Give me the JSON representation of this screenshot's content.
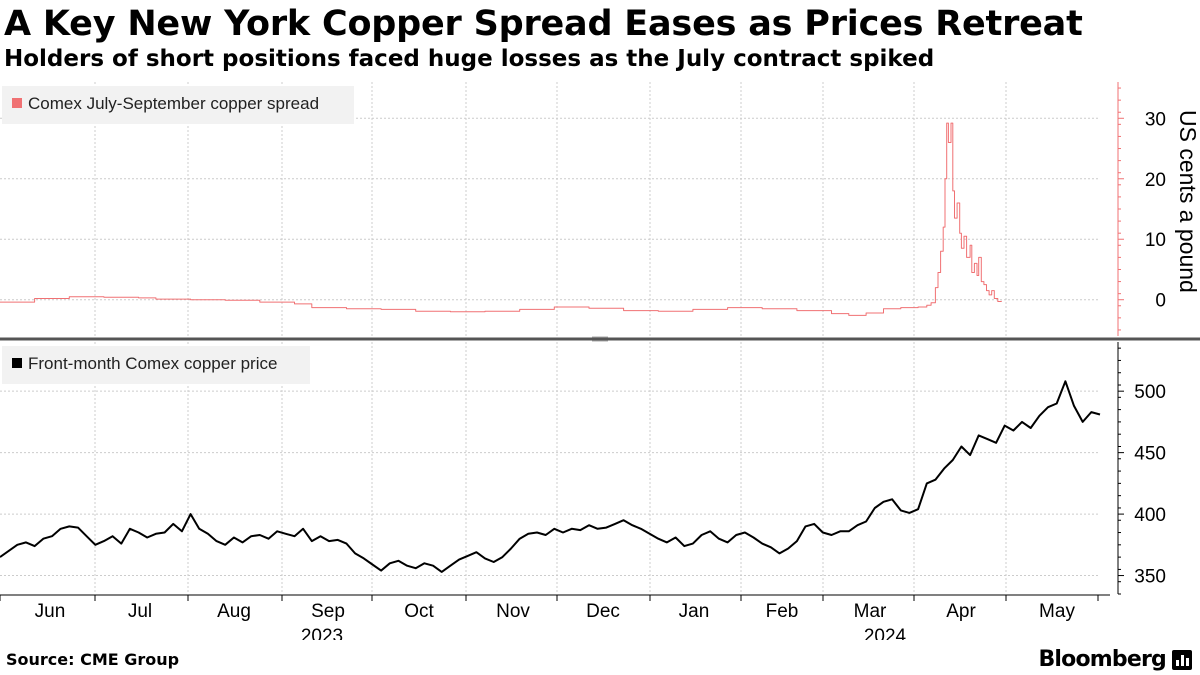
{
  "header": {
    "title": "A Key New York Copper Spread Eases as Prices Retreat",
    "subtitle": "Holders of short positions faced huge losses as the July contract spiked"
  },
  "footer": {
    "source": "Source: CME Group",
    "brand": "Bloomberg"
  },
  "colors": {
    "spread": "#f07173",
    "price": "#000000",
    "grid": "#cccccc",
    "legend_bg": "#f2f2f2",
    "separator": "#555555"
  },
  "chart_data": [
    {
      "type": "line",
      "title": "Comex July-September copper spread",
      "legend": "Comex July-September copper spread",
      "legend_placement": "top-left",
      "ylabel": "US cents a pound",
      "ylim": [
        -6,
        36
      ],
      "yticks": [
        0,
        10,
        20,
        30
      ],
      "step": true,
      "series_color": "#f07173",
      "series": [
        {
          "name": "Comex July-September copper spread",
          "points": [
            [
              0,
              -0.4
            ],
            [
              4,
              0.2
            ],
            [
              8,
              0.5
            ],
            [
              12,
              0.4
            ],
            [
              16,
              0.3
            ],
            [
              18,
              0.1
            ],
            [
              22,
              0.0
            ],
            [
              26,
              -0.1
            ],
            [
              30,
              -0.4
            ],
            [
              34,
              -0.7
            ],
            [
              36,
              -1.3
            ],
            [
              40,
              -1.5
            ],
            [
              44,
              -1.6
            ],
            [
              48,
              -1.9
            ],
            [
              52,
              -2.0
            ],
            [
              56,
              -1.9
            ],
            [
              60,
              -1.6
            ],
            [
              64,
              -1.2
            ],
            [
              68,
              -1.4
            ],
            [
              72,
              -1.8
            ],
            [
              76,
              -1.9
            ],
            [
              80,
              -1.6
            ],
            [
              84,
              -1.3
            ],
            [
              88,
              -1.5
            ],
            [
              92,
              -1.8
            ],
            [
              96,
              -2.3
            ],
            [
              98,
              -2.6
            ],
            [
              100,
              -2.2
            ],
            [
              102,
              -1.5
            ],
            [
              104,
              -1.3
            ],
            [
              106,
              -1.2
            ],
            [
              107,
              -0.9
            ],
            [
              107.5,
              -0.5
            ],
            [
              108,
              2.0
            ],
            [
              108.3,
              4.5
            ],
            [
              108.6,
              8.0
            ],
            [
              108.9,
              12.0
            ],
            [
              109.1,
              20.0
            ],
            [
              109.3,
              29.2
            ],
            [
              109.5,
              26.0
            ],
            [
              109.8,
              29.2
            ],
            [
              110.0,
              18.0
            ],
            [
              110.2,
              13.5
            ],
            [
              110.5,
              16.0
            ],
            [
              110.8,
              11.0
            ],
            [
              111.0,
              8.5
            ],
            [
              111.3,
              10.5
            ],
            [
              111.6,
              7.0
            ],
            [
              112.0,
              9.0
            ],
            [
              112.2,
              4.5
            ],
            [
              112.5,
              6.0
            ],
            [
              112.8,
              4.0
            ],
            [
              113.0,
              7.0
            ],
            [
              113.3,
              3.0
            ],
            [
              113.6,
              2.5
            ],
            [
              113.9,
              1.5
            ],
            [
              114.2,
              0.8
            ],
            [
              114.5,
              1.5
            ],
            [
              114.8,
              0.2
            ],
            [
              115.2,
              -0.3
            ],
            [
              115.6,
              -0.2
            ]
          ]
        }
      ]
    },
    {
      "type": "line",
      "title": "Front-month Comex copper price",
      "legend": "Front-month Comex copper price",
      "legend_placement": "top-left",
      "ylim": [
        335,
        540
      ],
      "yticks": [
        350,
        400,
        450,
        500
      ],
      "series_color": "#000000",
      "series": [
        {
          "name": "Front-month Comex copper price",
          "points": [
            [
              0,
              365
            ],
            [
              2,
              375
            ],
            [
              3,
              377
            ],
            [
              4,
              374
            ],
            [
              5,
              380
            ],
            [
              6,
              382
            ],
            [
              7,
              388
            ],
            [
              8,
              390
            ],
            [
              9,
              389
            ],
            [
              10,
              382
            ],
            [
              11,
              375
            ],
            [
              12,
              378
            ],
            [
              13,
              382
            ],
            [
              14,
              376
            ],
            [
              15,
              388
            ],
            [
              16,
              385
            ],
            [
              17,
              381
            ],
            [
              18,
              384
            ],
            [
              19,
              385
            ],
            [
              20,
              392
            ],
            [
              21,
              386
            ],
            [
              22,
              400
            ],
            [
              23,
              388
            ],
            [
              24,
              384
            ],
            [
              25,
              378
            ],
            [
              26,
              375
            ],
            [
              27,
              381
            ],
            [
              28,
              377
            ],
            [
              29,
              382
            ],
            [
              30,
              383
            ],
            [
              31,
              380
            ],
            [
              32,
              386
            ],
            [
              33,
              384
            ],
            [
              34,
              382
            ],
            [
              35,
              388
            ],
            [
              36,
              378
            ],
            [
              37,
              382
            ],
            [
              38,
              378
            ],
            [
              39,
              379
            ],
            [
              40,
              376
            ],
            [
              41,
              368
            ],
            [
              42,
              364
            ],
            [
              43,
              359
            ],
            [
              44,
              354
            ],
            [
              45,
              360
            ],
            [
              46,
              362
            ],
            [
              47,
              358
            ],
            [
              48,
              356
            ],
            [
              49,
              360
            ],
            [
              50,
              358
            ],
            [
              51,
              353
            ],
            [
              52,
              358
            ],
            [
              53,
              363
            ],
            [
              54,
              366
            ],
            [
              55,
              369
            ],
            [
              56,
              364
            ],
            [
              57,
              361
            ],
            [
              58,
              365
            ],
            [
              59,
              372
            ],
            [
              60,
              380
            ],
            [
              61,
              384
            ],
            [
              62,
              385
            ],
            [
              63,
              383
            ],
            [
              64,
              388
            ],
            [
              65,
              385
            ],
            [
              66,
              388
            ],
            [
              67,
              387
            ],
            [
              68,
              391
            ],
            [
              69,
              388
            ],
            [
              70,
              389
            ],
            [
              71,
              392
            ],
            [
              72,
              395
            ],
            [
              73,
              391
            ],
            [
              74,
              388
            ],
            [
              75,
              384
            ],
            [
              76,
              380
            ],
            [
              77,
              377
            ],
            [
              78,
              381
            ],
            [
              79,
              374
            ],
            [
              80,
              376
            ],
            [
              81,
              383
            ],
            [
              82,
              386
            ],
            [
              83,
              380
            ],
            [
              84,
              377
            ],
            [
              85,
              383
            ],
            [
              86,
              385
            ],
            [
              87,
              381
            ],
            [
              88,
              376
            ],
            [
              89,
              373
            ],
            [
              90,
              368
            ],
            [
              91,
              372
            ],
            [
              92,
              378
            ],
            [
              93,
              390
            ],
            [
              94,
              392
            ],
            [
              95,
              385
            ],
            [
              96,
              383
            ],
            [
              97,
              386
            ],
            [
              98,
              386
            ],
            [
              99,
              391
            ],
            [
              100,
              394
            ],
            [
              101,
              405
            ],
            [
              102,
              410
            ],
            [
              103,
              412
            ],
            [
              104,
              403
            ],
            [
              105,
              401
            ],
            [
              106,
              404
            ],
            [
              107,
              425
            ],
            [
              108,
              428
            ],
            [
              109,
              437
            ],
            [
              110,
              444
            ],
            [
              111,
              455
            ],
            [
              112,
              448
            ],
            [
              113,
              464
            ],
            [
              114,
              461
            ],
            [
              115,
              458
            ],
            [
              116,
              472
            ],
            [
              117,
              468
            ],
            [
              118,
              475
            ],
            [
              119,
              470
            ],
            [
              120,
              480
            ],
            [
              121,
              487
            ],
            [
              122,
              490
            ],
            [
              123,
              508
            ],
            [
              124,
              488
            ],
            [
              125,
              475
            ],
            [
              126,
              483
            ],
            [
              127,
              481
            ]
          ]
        }
      ]
    }
  ],
  "x_axis": {
    "months": [
      "Jun",
      "Jul",
      "Aug",
      "Sep",
      "Oct",
      "Nov",
      "Dec",
      "Jan",
      "Feb",
      "Mar",
      "Apr",
      "May"
    ],
    "years": [
      "2023",
      "2024"
    ]
  }
}
